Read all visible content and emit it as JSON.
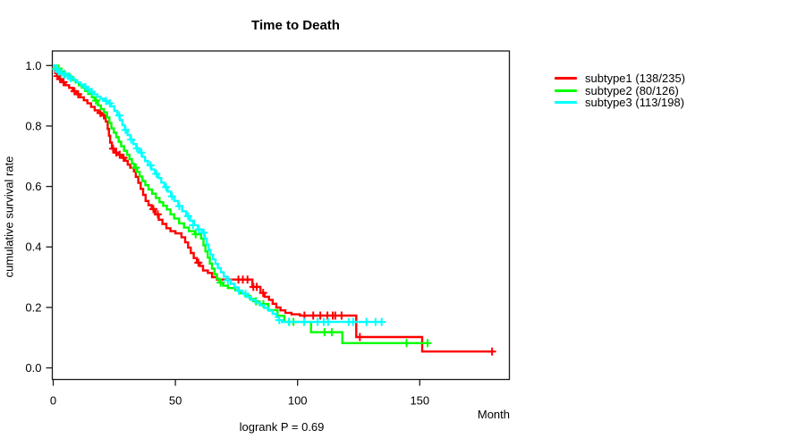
{
  "chart_data": {
    "type": "line",
    "subtype": "kaplan-meier-step-survival",
    "title": "Time to Death",
    "xlabel": "Month",
    "ylabel": "cumulative survival rate",
    "annotation": "logrank P = 0.69",
    "xlim": [
      0,
      187
    ],
    "ylim": [
      0,
      1.0
    ],
    "x_ticks": [
      0,
      50,
      100,
      150
    ],
    "y_ticks": [
      0.0,
      0.2,
      0.4,
      0.6,
      0.8,
      1.0
    ],
    "grid": false,
    "legend_position": "right",
    "series": [
      {
        "name": "subtype1 (138/235)",
        "color": "#ff0000",
        "step_points": [
          [
            0,
            1.0
          ],
          [
            0.8,
            0.975
          ],
          [
            1.5,
            0.965
          ],
          [
            2.5,
            0.955
          ],
          [
            3.5,
            0.945
          ],
          [
            5,
            0.935
          ],
          [
            6.5,
            0.926
          ],
          [
            8,
            0.915
          ],
          [
            9.5,
            0.905
          ],
          [
            11,
            0.895
          ],
          [
            12.5,
            0.885
          ],
          [
            14,
            0.875
          ],
          [
            15.5,
            0.863
          ],
          [
            17,
            0.852
          ],
          [
            18.5,
            0.843
          ],
          [
            20,
            0.835
          ],
          [
            21.5,
            0.815
          ],
          [
            22.3,
            0.79
          ],
          [
            22.8,
            0.768
          ],
          [
            23.3,
            0.745
          ],
          [
            24,
            0.725
          ],
          [
            25,
            0.712
          ],
          [
            26.5,
            0.705
          ],
          [
            28,
            0.695
          ],
          [
            29.5,
            0.685
          ],
          [
            30.5,
            0.672
          ],
          [
            31.5,
            0.662
          ],
          [
            33,
            0.65
          ],
          [
            33.8,
            0.632
          ],
          [
            34.8,
            0.612
          ],
          [
            35.8,
            0.592
          ],
          [
            36.8,
            0.572
          ],
          [
            37.8,
            0.552
          ],
          [
            39,
            0.538
          ],
          [
            40.3,
            0.525
          ],
          [
            41.8,
            0.508
          ],
          [
            43.2,
            0.49
          ],
          [
            44.7,
            0.476
          ],
          [
            46.3,
            0.462
          ],
          [
            48,
            0.452
          ],
          [
            50,
            0.445
          ],
          [
            52.5,
            0.432
          ],
          [
            54,
            0.415
          ],
          [
            55.2,
            0.398
          ],
          [
            56.3,
            0.38
          ],
          [
            57.5,
            0.363
          ],
          [
            58.8,
            0.348
          ],
          [
            60,
            0.337
          ],
          [
            61.3,
            0.322
          ],
          [
            63.3,
            0.314
          ],
          [
            65,
            0.3
          ],
          [
            67,
            0.292
          ],
          [
            81.5,
            0.268
          ],
          [
            84.8,
            0.248
          ],
          [
            86.5,
            0.235
          ],
          [
            88.3,
            0.225
          ],
          [
            89.8,
            0.212
          ],
          [
            91.3,
            0.2
          ],
          [
            93,
            0.19
          ],
          [
            95,
            0.182
          ],
          [
            97.5,
            0.177
          ],
          [
            101,
            0.173
          ],
          [
            124,
            0.102
          ],
          [
            151,
            0.054
          ],
          [
            180,
            0.054
          ]
        ],
        "censor_marks": [
          [
            1.8,
            0.965
          ],
          [
            2.8,
            0.955
          ],
          [
            4.2,
            0.945
          ],
          [
            8.7,
            0.915
          ],
          [
            10.2,
            0.905
          ],
          [
            19.3,
            0.843
          ],
          [
            20.7,
            0.835
          ],
          [
            24.5,
            0.725
          ],
          [
            25.8,
            0.712
          ],
          [
            27.2,
            0.705
          ],
          [
            28.8,
            0.695
          ],
          [
            41,
            0.525
          ],
          [
            42.8,
            0.508
          ],
          [
            59.4,
            0.348
          ],
          [
            75.8,
            0.292
          ],
          [
            77.6,
            0.292
          ],
          [
            79.5,
            0.292
          ],
          [
            81.9,
            0.268
          ],
          [
            83.3,
            0.268
          ],
          [
            85.9,
            0.248
          ],
          [
            102.8,
            0.173
          ],
          [
            106.4,
            0.173
          ],
          [
            109.3,
            0.173
          ],
          [
            112.2,
            0.173
          ],
          [
            114.4,
            0.173
          ],
          [
            115.4,
            0.173
          ],
          [
            118,
            0.173
          ],
          [
            125.5,
            0.102
          ],
          [
            179.6,
            0.054
          ]
        ]
      },
      {
        "name": "subtype2 (80/126)",
        "color": "#00ff00",
        "step_points": [
          [
            0,
            1.0
          ],
          [
            1.2,
            0.99
          ],
          [
            3,
            0.98
          ],
          [
            4.8,
            0.972
          ],
          [
            6.6,
            0.962
          ],
          [
            8,
            0.952
          ],
          [
            9.2,
            0.944
          ],
          [
            10.5,
            0.935
          ],
          [
            11.7,
            0.927
          ],
          [
            13,
            0.916
          ],
          [
            14.3,
            0.906
          ],
          [
            15.8,
            0.895
          ],
          [
            17,
            0.884
          ],
          [
            18.3,
            0.868
          ],
          [
            19.5,
            0.856
          ],
          [
            20.8,
            0.845
          ],
          [
            22,
            0.828
          ],
          [
            23,
            0.81
          ],
          [
            23.8,
            0.792
          ],
          [
            24.8,
            0.778
          ],
          [
            25.8,
            0.763
          ],
          [
            26.8,
            0.748
          ],
          [
            27.8,
            0.733
          ],
          [
            29,
            0.718
          ],
          [
            30.2,
            0.705
          ],
          [
            31.2,
            0.69
          ],
          [
            32.2,
            0.675
          ],
          [
            33.2,
            0.662
          ],
          [
            34.3,
            0.648
          ],
          [
            35.4,
            0.633
          ],
          [
            36.5,
            0.618
          ],
          [
            37.7,
            0.604
          ],
          [
            39,
            0.59
          ],
          [
            40.5,
            0.576
          ],
          [
            42,
            0.562
          ],
          [
            43.5,
            0.548
          ],
          [
            45,
            0.536
          ],
          [
            46.5,
            0.524
          ],
          [
            48,
            0.508
          ],
          [
            49.5,
            0.494
          ],
          [
            51.5,
            0.478
          ],
          [
            53.5,
            0.464
          ],
          [
            55.5,
            0.452
          ],
          [
            58,
            0.442
          ],
          [
            60.5,
            0.428
          ],
          [
            61.5,
            0.405
          ],
          [
            62.3,
            0.385
          ],
          [
            63.2,
            0.365
          ],
          [
            64.1,
            0.345
          ],
          [
            65,
            0.328
          ],
          [
            66,
            0.31
          ],
          [
            67,
            0.295
          ],
          [
            68,
            0.282
          ],
          [
            69.5,
            0.272
          ],
          [
            71.5,
            0.264
          ],
          [
            74.5,
            0.256
          ],
          [
            76.5,
            0.247
          ],
          [
            78.5,
            0.238
          ],
          [
            80.5,
            0.228
          ],
          [
            82.5,
            0.22
          ],
          [
            84.4,
            0.211
          ],
          [
            88,
            0.191
          ],
          [
            91.8,
            0.172
          ],
          [
            94.6,
            0.152
          ],
          [
            105.5,
            0.118
          ],
          [
            118.3,
            0.082
          ],
          [
            153.2,
            0.082
          ]
        ],
        "censor_marks": [
          [
            1.2,
            0.99
          ],
          [
            2.2,
            0.99
          ],
          [
            4.5,
            0.972
          ],
          [
            17.5,
            0.884
          ],
          [
            33.8,
            0.662
          ],
          [
            58.3,
            0.442
          ],
          [
            68.5,
            0.282
          ],
          [
            83,
            0.22
          ],
          [
            86,
            0.211
          ],
          [
            96.5,
            0.152
          ],
          [
            98.3,
            0.152
          ],
          [
            111,
            0.118
          ],
          [
            114,
            0.118
          ],
          [
            144.6,
            0.082
          ],
          [
            153.2,
            0.082
          ]
        ]
      },
      {
        "name": "subtype3 (113/198)",
        "color": "#00ffff",
        "step_points": [
          [
            0,
            1.0
          ],
          [
            1,
            0.988
          ],
          [
            2,
            0.98
          ],
          [
            3.2,
            0.974
          ],
          [
            4.5,
            0.97
          ],
          [
            6,
            0.965
          ],
          [
            7.3,
            0.958
          ],
          [
            8.5,
            0.951
          ],
          [
            9.8,
            0.944
          ],
          [
            11.2,
            0.937
          ],
          [
            12.6,
            0.929
          ],
          [
            14,
            0.921
          ],
          [
            15.4,
            0.913
          ],
          [
            16.7,
            0.905
          ],
          [
            18,
            0.897
          ],
          [
            19.4,
            0.89
          ],
          [
            20.8,
            0.883
          ],
          [
            22.2,
            0.875
          ],
          [
            23.6,
            0.865
          ],
          [
            25,
            0.85
          ],
          [
            26.2,
            0.835
          ],
          [
            27.3,
            0.819
          ],
          [
            28.3,
            0.803
          ],
          [
            29.3,
            0.787
          ],
          [
            30.4,
            0.77
          ],
          [
            31.6,
            0.755
          ],
          [
            32.8,
            0.74
          ],
          [
            34,
            0.726
          ],
          [
            35.2,
            0.712
          ],
          [
            36.4,
            0.698
          ],
          [
            37.6,
            0.684
          ],
          [
            38.8,
            0.67
          ],
          [
            40.2,
            0.656
          ],
          [
            41.6,
            0.642
          ],
          [
            43,
            0.628
          ],
          [
            44.2,
            0.613
          ],
          [
            45.5,
            0.598
          ],
          [
            46.8,
            0.583
          ],
          [
            48.2,
            0.567
          ],
          [
            49.6,
            0.552
          ],
          [
            51.2,
            0.535
          ],
          [
            52.8,
            0.518
          ],
          [
            54.4,
            0.502
          ],
          [
            56,
            0.487
          ],
          [
            57.6,
            0.472
          ],
          [
            59.2,
            0.458
          ],
          [
            60.8,
            0.447
          ],
          [
            62,
            0.428
          ],
          [
            62.8,
            0.408
          ],
          [
            63.6,
            0.39
          ],
          [
            64.4,
            0.374
          ],
          [
            65.4,
            0.359
          ],
          [
            66.4,
            0.344
          ],
          [
            67.4,
            0.33
          ],
          [
            68.6,
            0.316
          ],
          [
            69.8,
            0.302
          ],
          [
            71.2,
            0.29
          ],
          [
            72.7,
            0.278
          ],
          [
            74.2,
            0.266
          ],
          [
            75.7,
            0.255
          ],
          [
            77.4,
            0.245
          ],
          [
            79.2,
            0.235
          ],
          [
            81,
            0.225
          ],
          [
            82.8,
            0.216
          ],
          [
            84.6,
            0.207
          ],
          [
            86.4,
            0.198
          ],
          [
            88.2,
            0.189
          ],
          [
            89.8,
            0.179
          ],
          [
            91.2,
            0.168
          ],
          [
            92.4,
            0.158
          ],
          [
            93.6,
            0.152
          ],
          [
            134.4,
            0.152
          ]
        ],
        "censor_marks": [
          [
            1.3,
            0.988
          ],
          [
            2.2,
            0.98
          ],
          [
            3.4,
            0.974
          ],
          [
            4.8,
            0.97
          ],
          [
            6.2,
            0.965
          ],
          [
            7.1,
            0.958
          ],
          [
            13.2,
            0.929
          ],
          [
            15.8,
            0.913
          ],
          [
            21.6,
            0.883
          ],
          [
            23.2,
            0.875
          ],
          [
            27,
            0.835
          ],
          [
            29.6,
            0.787
          ],
          [
            31.9,
            0.755
          ],
          [
            34.3,
            0.726
          ],
          [
            36.1,
            0.712
          ],
          [
            39.8,
            0.67
          ],
          [
            42.2,
            0.642
          ],
          [
            46.2,
            0.598
          ],
          [
            48.6,
            0.567
          ],
          [
            51.6,
            0.535
          ],
          [
            55.2,
            0.502
          ],
          [
            57.2,
            0.472
          ],
          [
            59.6,
            0.458
          ],
          [
            61.6,
            0.447
          ],
          [
            71.5,
            0.29
          ],
          [
            76,
            0.255
          ],
          [
            78.7,
            0.245
          ],
          [
            92.5,
            0.158
          ],
          [
            96.5,
            0.152
          ],
          [
            102.7,
            0.152
          ],
          [
            108.2,
            0.152
          ],
          [
            110.7,
            0.152
          ],
          [
            112.5,
            0.152
          ],
          [
            120.9,
            0.152
          ],
          [
            122.7,
            0.152
          ],
          [
            128.2,
            0.152
          ],
          [
            131.9,
            0.152
          ],
          [
            134.4,
            0.152
          ]
        ]
      }
    ]
  }
}
